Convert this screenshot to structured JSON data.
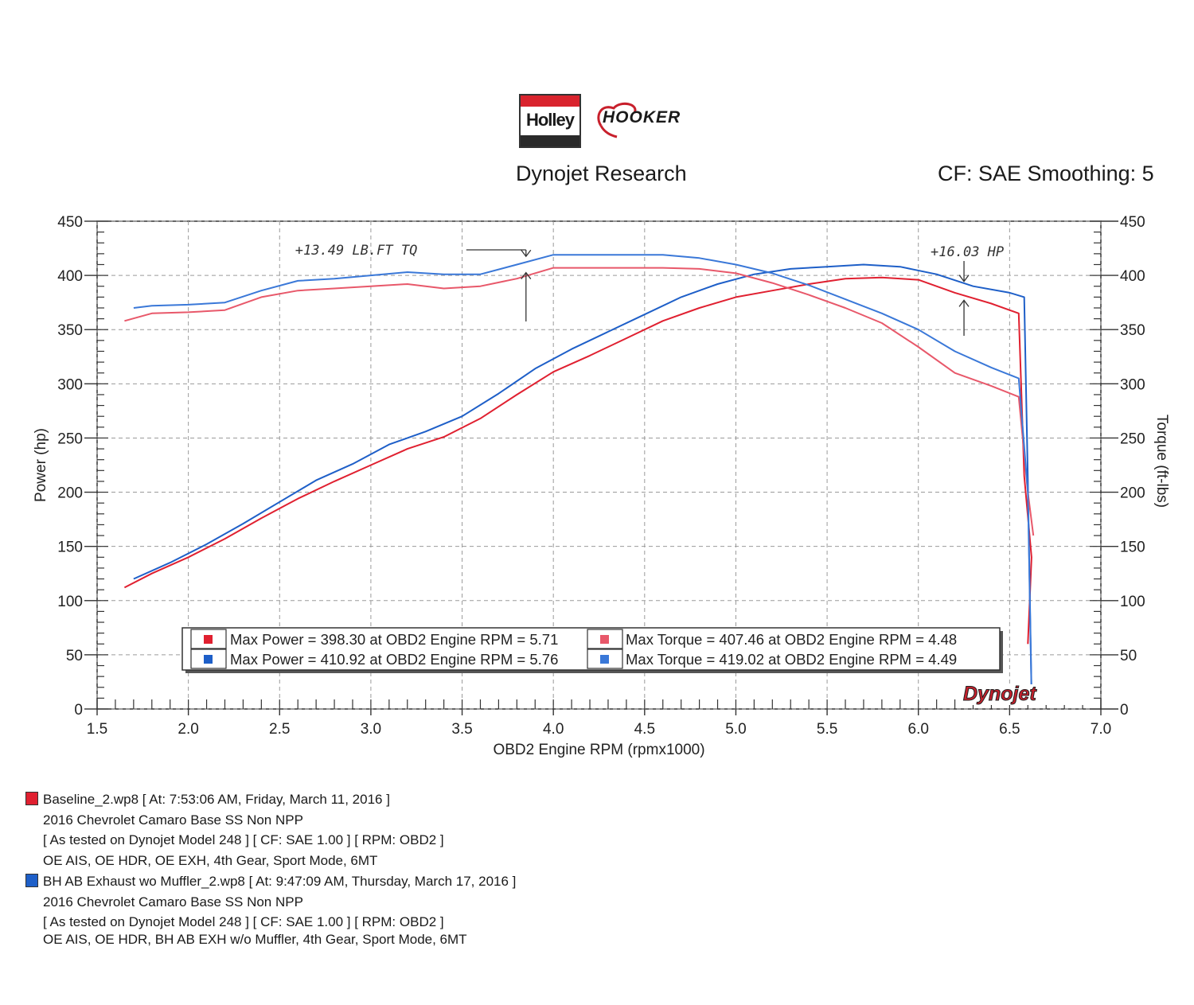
{
  "logos": {
    "holley": "Holley",
    "hooker": "HOOKER"
  },
  "header": {
    "title": "Dynojet Research",
    "cf": "CF: SAE Smoothing: 5"
  },
  "colors": {
    "run1": "#e02030",
    "run2": "#1e5fc8",
    "run1_torque": "#e8586a",
    "run2_torque": "#3a78d8"
  },
  "chart_data": {
    "type": "line",
    "xlabel": "OBD2 Engine RPM (rpmx1000)",
    "ylabel": "Power (hp)",
    "y2label": "Torque (ft-lbs)",
    "xlim": [
      1.5,
      7.0
    ],
    "ylim": [
      0,
      450
    ],
    "y2lim": [
      0,
      450
    ],
    "x_ticks": [
      "1.5",
      "2.0",
      "2.5",
      "3.0",
      "3.5",
      "4.0",
      "4.5",
      "5.0",
      "5.5",
      "6.0",
      "6.5",
      "7.0"
    ],
    "y_ticks": [
      "0",
      "50",
      "100",
      "150",
      "200",
      "250",
      "300",
      "350",
      "400",
      "450"
    ],
    "y2_ticks": [
      "0",
      "50",
      "100",
      "150",
      "200",
      "250",
      "300",
      "350",
      "400",
      "450"
    ],
    "grid": true,
    "series": [
      {
        "axis": "left",
        "color": "#e02030",
        "x": [
          1.65,
          1.8,
          2.0,
          2.2,
          2.4,
          2.6,
          2.8,
          3.0,
          3.2,
          3.4,
          3.6,
          3.8,
          4.0,
          4.2,
          4.4,
          4.6,
          4.8,
          5.0,
          5.2,
          5.4,
          5.6,
          5.8,
          6.0,
          6.2,
          6.4,
          6.55,
          6.58,
          6.62,
          6.6
        ],
        "y": [
          112,
          125,
          140,
          157,
          176,
          194,
          210,
          225,
          240,
          251,
          268,
          290,
          311,
          326,
          342,
          358,
          370,
          380,
          386,
          392,
          397,
          398,
          396,
          384,
          374,
          365,
          215,
          140,
          60
        ]
      },
      {
        "axis": "left",
        "color": "#1e5fc8",
        "x": [
          1.7,
          1.9,
          2.1,
          2.3,
          2.5,
          2.7,
          2.9,
          3.1,
          3.3,
          3.5,
          3.7,
          3.9,
          4.1,
          4.3,
          4.5,
          4.7,
          4.9,
          5.1,
          5.3,
          5.5,
          5.7,
          5.9,
          6.1,
          6.3,
          6.5,
          6.58,
          6.6,
          6.62
        ],
        "y": [
          120,
          135,
          152,
          171,
          191,
          211,
          226,
          244,
          256,
          270,
          291,
          314,
          332,
          348,
          364,
          380,
          392,
          401,
          406,
          408,
          410,
          408,
          401,
          390,
          384,
          380,
          210,
          15
        ]
      },
      {
        "axis": "right",
        "color": "#e8586a",
        "x": [
          1.65,
          1.8,
          2.0,
          2.2,
          2.4,
          2.6,
          2.8,
          3.0,
          3.2,
          3.4,
          3.6,
          3.8,
          4.0,
          4.2,
          4.4,
          4.6,
          4.8,
          5.0,
          5.2,
          5.4,
          5.6,
          5.8,
          6.0,
          6.2,
          6.4,
          6.55,
          6.6,
          6.63
        ],
        "y": [
          358,
          365,
          366,
          368,
          380,
          386,
          388,
          390,
          392,
          388,
          390,
          397,
          407,
          407,
          407,
          407,
          406,
          402,
          393,
          382,
          370,
          356,
          334,
          310,
          298,
          288,
          200,
          160
        ]
      },
      {
        "axis": "right",
        "color": "#3a78d8",
        "x": [
          1.7,
          1.8,
          2.0,
          2.2,
          2.4,
          2.6,
          2.8,
          3.0,
          3.2,
          3.4,
          3.6,
          3.8,
          4.0,
          4.2,
          4.4,
          4.6,
          4.8,
          5.0,
          5.2,
          5.4,
          5.6,
          5.8,
          6.0,
          6.2,
          6.4,
          6.55,
          6.6,
          6.62
        ],
        "y": [
          370,
          372,
          373,
          375,
          386,
          395,
          397,
          400,
          403,
          401,
          401,
          410,
          419,
          419,
          419,
          419,
          416,
          410,
          402,
          391,
          378,
          365,
          350,
          330,
          315,
          305,
          200,
          12
        ]
      }
    ],
    "legend": [
      {
        "color": "#e02030",
        "text": "Max Power = 398.30 at OBD2 Engine RPM = 5.71"
      },
      {
        "color": "#1e5fc8",
        "text": "Max Power = 410.92 at OBD2 Engine RPM = 5.76"
      },
      {
        "color": "#e8586a",
        "text": "Max Torque = 407.46 at OBD2 Engine RPM = 4.48"
      },
      {
        "color": "#3a78d8",
        "text": "Max Torque = 419.02 at OBD2 Engine RPM = 4.49"
      }
    ],
    "annotations": [
      {
        "text": "+13.49 LB.FT TQ",
        "x": 3.85
      },
      {
        "text": "+16.03 HP",
        "x": 6.25
      }
    ],
    "watermark": "Dynojet"
  },
  "runs": [
    {
      "swatch": "#e02030",
      "name": "Baseline_2.wp8 [ At: 7:53:06 AM, Friday, March 11, 2016 ]",
      "vehicle": "2016 Chevrolet Camaro Base SS Non NPP",
      "tested": "[ As tested on Dynojet Model 248 ]  [ CF: SAE 1.00 ]  [ RPM: OBD2 ]",
      "notes": "OE AIS, OE HDR, OE EXH, 4th Gear, Sport Mode, 6MT"
    },
    {
      "swatch": "#1e5fc8",
      "name": "BH AB Exhaust wo Muffler_2.wp8 [ At: 9:47:09 AM, Thursday, March 17, 2016 ]",
      "vehicle": "2016 Chevrolet Camaro Base SS Non NPP",
      "tested": "[ As tested on Dynojet Model 248 ]  [ CF: SAE 1.00 ]  [ RPM: OBD2 ]",
      "notes": "OE AIS, OE HDR, BH AB EXH w/o Muffler, 4th Gear, Sport Mode, 6MT"
    }
  ]
}
